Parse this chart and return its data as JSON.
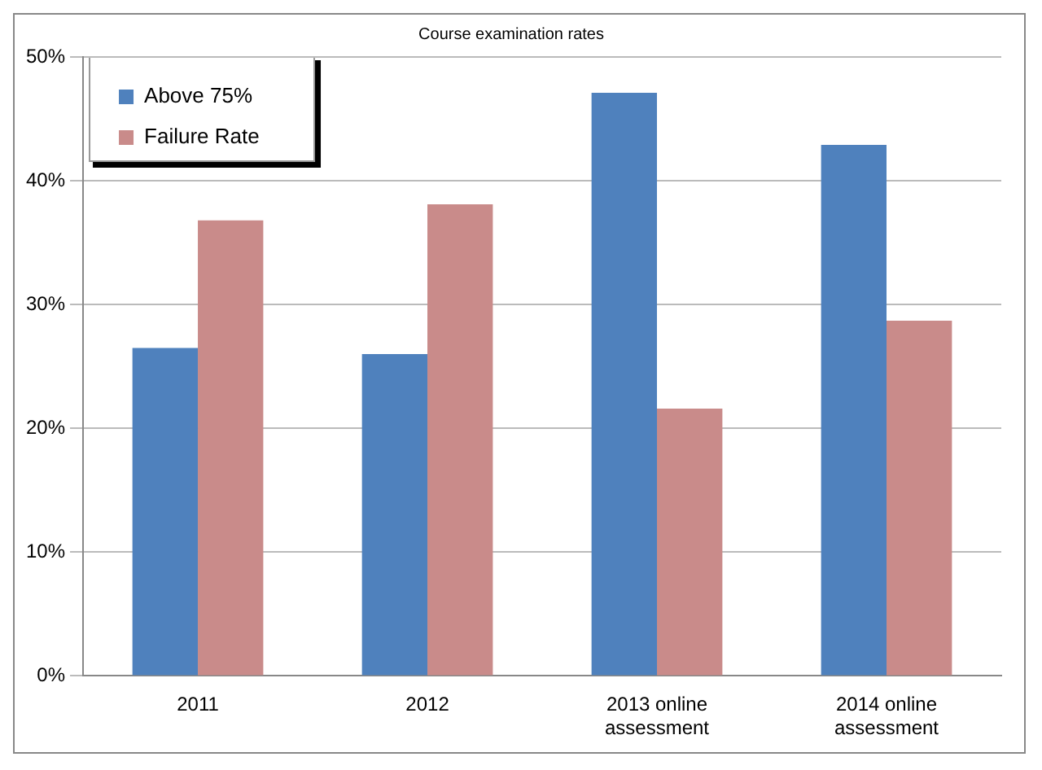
{
  "chart_data": {
    "type": "bar",
    "title": "Course examination rates",
    "categories": [
      "2011",
      "2012",
      "2013 online assessment",
      "2014 online assessment"
    ],
    "series": [
      {
        "name": "Above 75%",
        "color": "#4f81bd",
        "values": [
          26.5,
          26.0,
          47.1,
          42.9
        ]
      },
      {
        "name": "Failure Rate",
        "color": "#c98b8a",
        "values": [
          36.8,
          38.1,
          21.6,
          28.7
        ]
      }
    ],
    "ylim": [
      0,
      50
    ],
    "yticks": [
      {
        "value": 0,
        "label": "0%"
      },
      {
        "value": 10,
        "label": "10%"
      },
      {
        "value": 20,
        "label": "20%"
      },
      {
        "value": 30,
        "label": "30%"
      },
      {
        "value": 40,
        "label": "40%"
      },
      {
        "value": 50,
        "label": "50%"
      }
    ],
    "grid": "y",
    "legend": "top left"
  }
}
